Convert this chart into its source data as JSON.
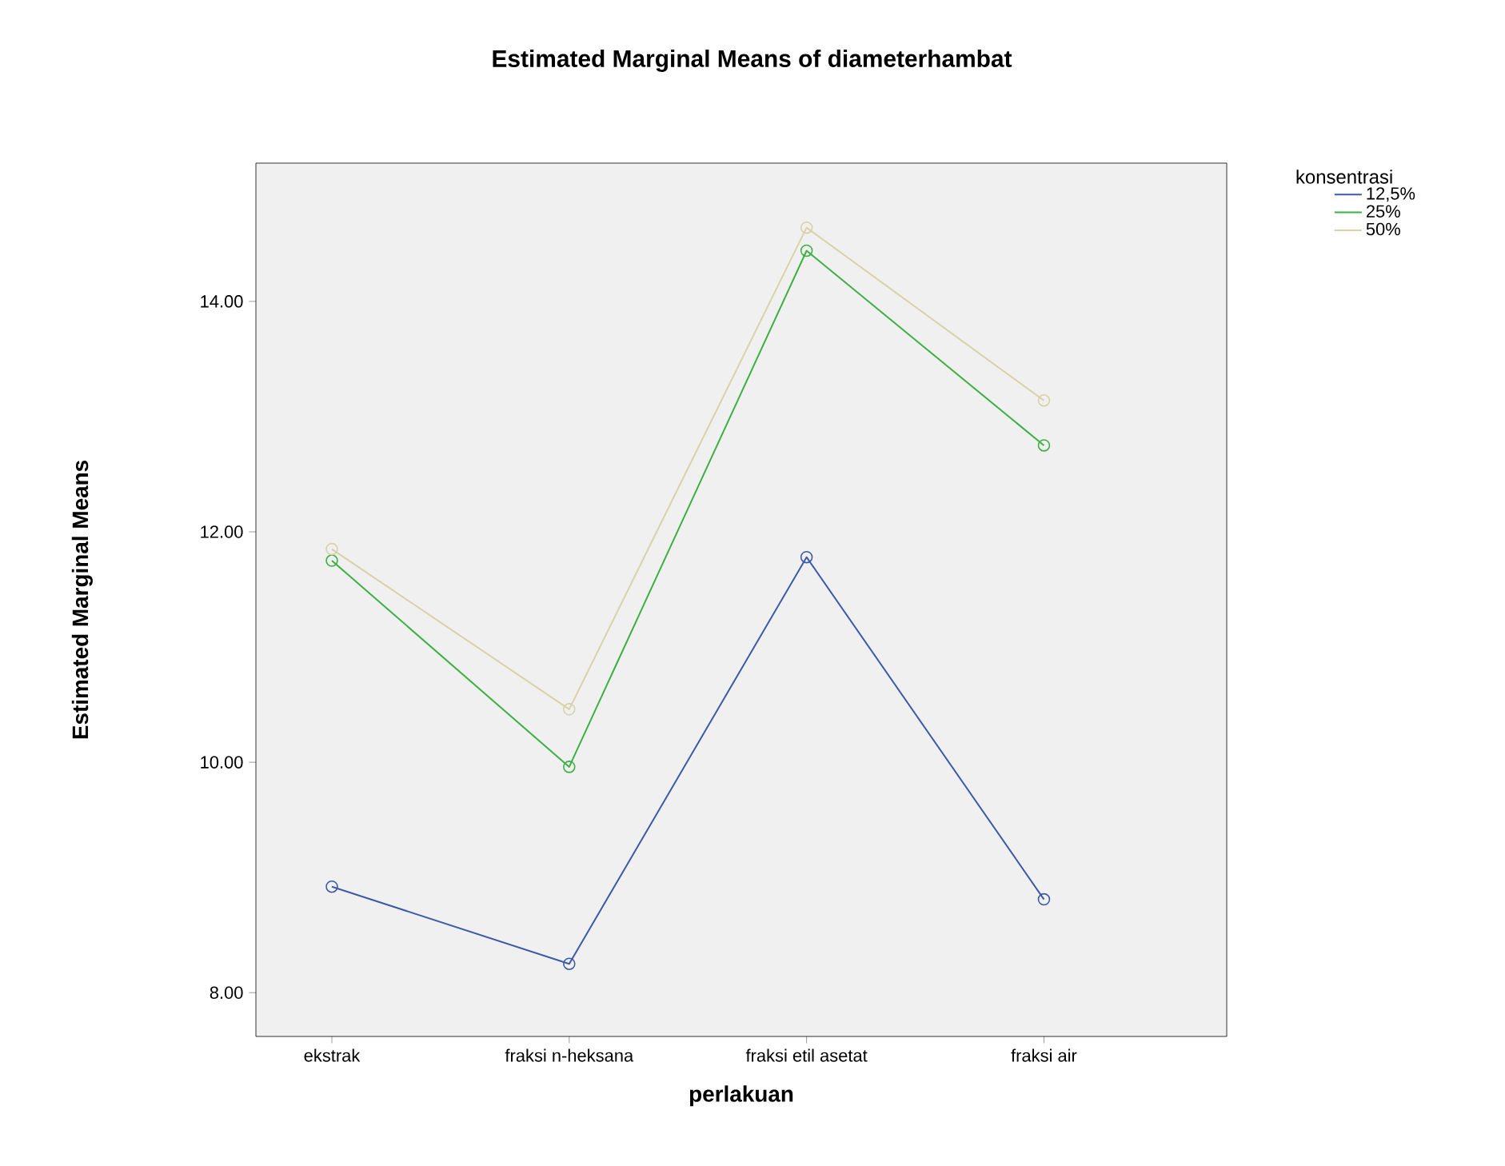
{
  "chart_data": {
    "type": "line",
    "title": "Estimated Marginal Means of diameterhambat",
    "xlabel": "perlakuan",
    "ylabel": "Estimated Marginal Means",
    "legend_title": "konsentrasi",
    "legend": "top right",
    "marker": "circle",
    "line_style": "solid",
    "categories": [
      "ekstrak",
      "fraksi n-heksana",
      "fraksi etil asetat",
      "fraksi air"
    ],
    "ylim": [
      7.62,
      15.2
    ],
    "yticks": [
      {
        "value": 8,
        "label": "8.00"
      },
      {
        "value": 10,
        "label": "10.00"
      },
      {
        "value": 12,
        "label": "12.00"
      },
      {
        "value": 14,
        "label": "14.00"
      }
    ],
    "series": [
      {
        "name": "12,5%",
        "color": "#3c5aa8",
        "values": [
          8.92,
          8.25,
          11.78,
          8.81
        ]
      },
      {
        "name": "25%",
        "color": "#3cb043",
        "values": [
          11.75,
          9.96,
          14.44,
          12.75
        ]
      },
      {
        "name": "50%",
        "color": "#d8d2a8",
        "values": [
          11.85,
          10.46,
          14.64,
          13.14
        ]
      }
    ]
  }
}
